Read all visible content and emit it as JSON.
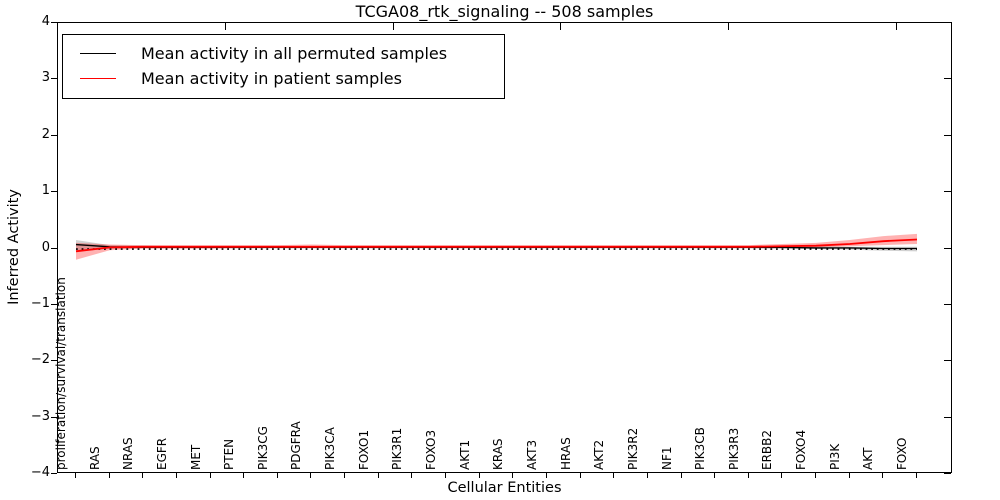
{
  "chart_data": {
    "type": "line",
    "title": "TCGA08_rtk_signaling -- 508 samples",
    "xlabel": "Cellular Entities",
    "ylabel": "Inferred Activity",
    "ylim": [
      -4,
      4
    ],
    "ytick_values": [
      4,
      3,
      2,
      1,
      0,
      -1,
      -2,
      -3,
      -4
    ],
    "ytick_labels": [
      "4",
      "3",
      "2",
      "1",
      "0",
      "−1",
      "−2",
      "−3",
      "−4"
    ],
    "x_major_ticks": [
      5,
      10,
      15,
      20,
      25
    ],
    "grid": false,
    "legend_position": "upper left",
    "categories": [
      "proliferation/survival/translation",
      "RAS",
      "NRAS",
      "EGFR",
      "MET",
      "PTEN",
      "PIK3CG",
      "PDGFRA",
      "PIK3CA",
      "FOXO1",
      "PIK3R1",
      "FOXO3",
      "AKT1",
      "KRAS",
      "AKT3",
      "HRAS",
      "AKT2",
      "PIK3R2",
      "NF1",
      "PIK3CB",
      "PIK3R3",
      "ERBB2",
      "FOXO4",
      "PI3K",
      "AKT",
      "FOXO"
    ],
    "legend": {
      "entries": [
        {
          "label": "Mean activity in all permuted samples",
          "color": "#000000"
        },
        {
          "label": "Mean activity in patient samples",
          "color": "#ff0000"
        }
      ]
    },
    "series": [
      {
        "name": "Mean activity in all permuted samples",
        "color": "#000000",
        "style": "solid",
        "width": 1.3,
        "values": [
          0.07,
          0.03,
          0.02,
          0.02,
          0.02,
          0.02,
          0.02,
          0.02,
          0.02,
          0.02,
          0.02,
          0.02,
          0.02,
          0.02,
          0.02,
          0.02,
          0.02,
          0.02,
          0.02,
          0.02,
          0.02,
          0.02,
          0.01,
          0.01,
          0.0,
          0.0
        ],
        "band": {
          "color": "rgba(0,0,0,0.18)",
          "low": [
            -0.05,
            -0.01,
            0.0,
            0.0,
            0.0,
            0.0,
            0.0,
            0.0,
            0.0,
            0.0,
            0.0,
            0.0,
            0.0,
            0.0,
            0.0,
            0.0,
            0.0,
            0.0,
            0.0,
            0.0,
            0.0,
            -0.01,
            -0.01,
            -0.02,
            -0.04,
            -0.05
          ],
          "high": [
            0.15,
            0.06,
            0.05,
            0.04,
            0.04,
            0.04,
            0.04,
            0.04,
            0.04,
            0.04,
            0.04,
            0.04,
            0.04,
            0.04,
            0.04,
            0.04,
            0.04,
            0.04,
            0.04,
            0.04,
            0.04,
            0.04,
            0.04,
            0.03,
            0.03,
            0.03
          ]
        }
      },
      {
        "name": "zero baseline",
        "color": "#000000",
        "style": "dotted",
        "width": 1.6,
        "values": [
          -0.01,
          -0.01,
          -0.01,
          -0.01,
          -0.01,
          -0.01,
          -0.01,
          -0.01,
          -0.01,
          -0.01,
          -0.01,
          -0.01,
          -0.01,
          -0.01,
          -0.01,
          -0.01,
          -0.01,
          -0.01,
          -0.01,
          -0.01,
          -0.01,
          -0.01,
          -0.01,
          -0.01,
          -0.01,
          -0.01
        ]
      },
      {
        "name": "Mean activity in patient samples",
        "color": "#ff0000",
        "style": "solid",
        "width": 1.8,
        "values": [
          -0.05,
          0.02,
          0.03,
          0.03,
          0.03,
          0.03,
          0.03,
          0.03,
          0.03,
          0.03,
          0.03,
          0.03,
          0.03,
          0.03,
          0.03,
          0.03,
          0.03,
          0.03,
          0.03,
          0.03,
          0.03,
          0.04,
          0.05,
          0.08,
          0.13,
          0.16
        ],
        "band": {
          "color": "rgba(255,0,0,0.30)",
          "low": [
            -0.2,
            -0.03,
            0.0,
            0.0,
            0.0,
            0.01,
            0.01,
            0.01,
            0.01,
            0.01,
            0.01,
            0.01,
            0.01,
            0.01,
            0.01,
            0.01,
            0.01,
            0.01,
            0.01,
            0.01,
            0.01,
            0.01,
            0.02,
            0.04,
            0.06,
            0.08
          ],
          "high": [
            0.1,
            0.07,
            0.06,
            0.06,
            0.06,
            0.06,
            0.06,
            0.07,
            0.06,
            0.06,
            0.06,
            0.06,
            0.06,
            0.06,
            0.06,
            0.06,
            0.06,
            0.06,
            0.06,
            0.06,
            0.06,
            0.08,
            0.1,
            0.15,
            0.22,
            0.26
          ]
        }
      }
    ]
  }
}
